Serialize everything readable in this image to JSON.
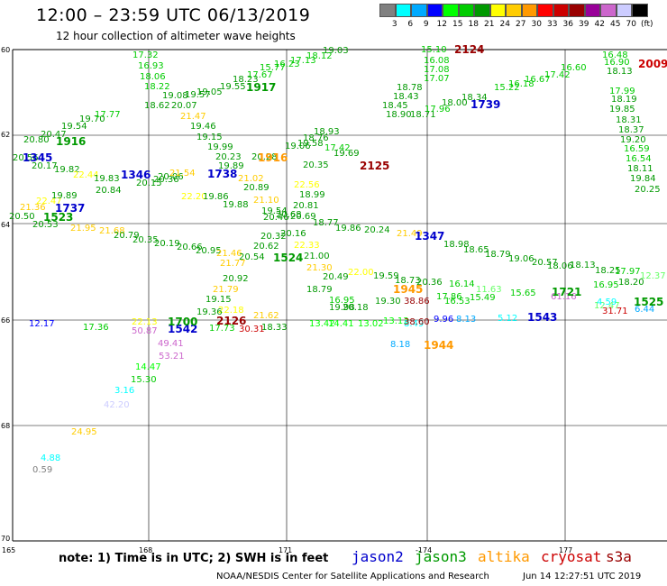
{
  "header": {
    "title": "12:00 – 23:59 UTC 06/13/2019",
    "subtitle": "12 hour collection of altimeter wave heights"
  },
  "scale": {
    "colors": [
      "#808080",
      "#00ffff",
      "#00aaff",
      "#0000ff",
      "#00ff00",
      "#00cc00",
      "#009900",
      "#ffff00",
      "#ffcc00",
      "#ff9900",
      "#ff0000",
      "#cc0000",
      "#990000",
      "#990099",
      "#cc66cc",
      "#ccccff",
      "#000000"
    ],
    "labels": [
      "3",
      "6",
      "9",
      "12",
      "15",
      "18",
      "21",
      "24",
      "27",
      "30",
      "33",
      "36",
      "39",
      "42",
      "45",
      "70",
      "(ft)"
    ]
  },
  "axes": {
    "lat_labels": [
      "60",
      "62",
      "64",
      "66",
      "68",
      "70"
    ],
    "lon_labels": [
      "165",
      "168",
      "171",
      "-174",
      "177"
    ]
  },
  "footer": {
    "note": "note: 1) Time is in UTC; 2) SWH is in feet",
    "satellites": [
      {
        "name": "jason2",
        "color": "#0000cc"
      },
      {
        "name": "jason3",
        "color": "#009900"
      },
      {
        "name": "altika",
        "color": "#ff9900"
      },
      {
        "name": "cryosat",
        "color": "#cc0000"
      },
      {
        "name": "s3a",
        "color": "#990000"
      }
    ],
    "credit": "NOAA/NESDIS Center for Satellite Applications and Research",
    "timestamp": "Jun 14 12:27:51 UTC 2019"
  },
  "passes": [
    {
      "label": "1916",
      "color": "#009900"
    },
    {
      "label": "1345",
      "color": "#0000cc"
    },
    {
      "label": "1737",
      "color": "#0000cc"
    },
    {
      "label": "1523",
      "color": "#009900"
    },
    {
      "label": "1346",
      "color": "#0000cc"
    },
    {
      "label": "1738",
      "color": "#0000cc"
    },
    {
      "label": "1917",
      "color": "#009900"
    },
    {
      "label": "1916",
      "color": "#ff9900"
    },
    {
      "label": "2124",
      "color": "#990000"
    },
    {
      "label": "2125",
      "color": "#990000"
    },
    {
      "label": "1739",
      "color": "#0000cc"
    },
    {
      "label": "2009",
      "color": "#cc0000"
    },
    {
      "label": "1524",
      "color": "#009900"
    },
    {
      "label": "1347",
      "color": "#0000cc"
    },
    {
      "label": "1945",
      "color": "#ff9900"
    },
    {
      "label": "2126",
      "color": "#990000"
    },
    {
      "label": "1542",
      "color": "#0000cc"
    },
    {
      "label": "1700",
      "color": "#009900"
    },
    {
      "label": "1944",
      "color": "#ff9900"
    },
    {
      "label": "1543",
      "color": "#0000cc"
    },
    {
      "label": "1721",
      "color": "#009900"
    },
    {
      "label": "1525",
      "color": "#009900"
    }
  ],
  "observations": [
    {
      "v": "17.32",
      "c": "#00cc00"
    },
    {
      "v": "16.93",
      "c": "#00cc00"
    },
    {
      "v": "18.06",
      "c": "#00cc00"
    },
    {
      "v": "18.22",
      "c": "#00cc00"
    },
    {
      "v": "19.08",
      "c": "#009900"
    },
    {
      "v": "18.62",
      "c": "#009900"
    },
    {
      "v": "20.07",
      "c": "#009900"
    },
    {
      "v": "19.57",
      "c": "#009900"
    },
    {
      "v": "19.05",
      "c": "#009900"
    },
    {
      "v": "19.55",
      "c": "#009900"
    },
    {
      "v": "18.23",
      "c": "#009900"
    },
    {
      "v": "17.67",
      "c": "#00cc00"
    },
    {
      "v": "15.77",
      "c": "#00cc00"
    },
    {
      "v": "16.23",
      "c": "#00cc00"
    },
    {
      "v": "17.13",
      "c": "#00cc00"
    },
    {
      "v": "18.12",
      "c": "#00cc00"
    },
    {
      "v": "19.03",
      "c": "#009900"
    },
    {
      "v": "21.47",
      "c": "#ffcc00"
    },
    {
      "v": "19.46",
      "c": "#009900"
    },
    {
      "v": "19.15",
      "c": "#009900"
    },
    {
      "v": "19.99",
      "c": "#009900"
    },
    {
      "v": "20.23",
      "c": "#009900"
    },
    {
      "v": "20.28",
      "c": "#009900"
    },
    {
      "v": "19.89",
      "c": "#009900"
    },
    {
      "v": "20.80",
      "c": "#009900"
    },
    {
      "v": "20.47",
      "c": "#009900"
    },
    {
      "v": "19.54",
      "c": "#009900"
    },
    {
      "v": "19.70",
      "c": "#009900"
    },
    {
      "v": "17.77",
      "c": "#00cc00"
    },
    {
      "v": "20.56",
      "c": "#009900"
    },
    {
      "v": "20.17",
      "c": "#009900"
    },
    {
      "v": "19.82",
      "c": "#009900"
    },
    {
      "v": "22.44",
      "c": "#ffff00"
    },
    {
      "v": "19.83",
      "c": "#009900"
    },
    {
      "v": "20.84",
      "c": "#009900"
    },
    {
      "v": "20.15",
      "c": "#009900"
    },
    {
      "v": "20.36",
      "c": "#009900"
    },
    {
      "v": "20.06",
      "c": "#009900"
    },
    {
      "v": "21.54",
      "c": "#ffcc00"
    },
    {
      "v": "22.20",
      "c": "#ffff00"
    },
    {
      "v": "19.86",
      "c": "#009900"
    },
    {
      "v": "20.89",
      "c": "#009900"
    },
    {
      "v": "21.02",
      "c": "#ffcc00"
    },
    {
      "v": "21.36",
      "c": "#ffcc00"
    },
    {
      "v": "22.47",
      "c": "#ffff00"
    },
    {
      "v": "19.89",
      "c": "#009900"
    },
    {
      "v": "20.50",
      "c": "#009900"
    },
    {
      "v": "20.53",
      "c": "#009900"
    },
    {
      "v": "21.95",
      "c": "#ffcc00"
    },
    {
      "v": "21.68",
      "c": "#ffcc00"
    },
    {
      "v": "20.79",
      "c": "#009900"
    },
    {
      "v": "20.35",
      "c": "#009900"
    },
    {
      "v": "20.19",
      "c": "#009900"
    },
    {
      "v": "20.66",
      "c": "#009900"
    },
    {
      "v": "20.95",
      "c": "#009900"
    },
    {
      "v": "21.46",
      "c": "#ffcc00"
    },
    {
      "v": "21.77",
      "c": "#ffcc00"
    },
    {
      "v": "20.54",
      "c": "#009900"
    },
    {
      "v": "20.92",
      "c": "#009900"
    },
    {
      "v": "21.79",
      "c": "#ffcc00"
    },
    {
      "v": "19.15",
      "c": "#009900"
    },
    {
      "v": "22.18",
      "c": "#ffff00"
    },
    {
      "v": "20.62",
      "c": "#009900"
    },
    {
      "v": "20.32",
      "c": "#009900"
    },
    {
      "v": "20.16",
      "c": "#009900"
    },
    {
      "v": "21.00",
      "c": "#009900"
    },
    {
      "v": "22.33",
      "c": "#ffff00"
    },
    {
      "v": "21.10",
      "c": "#ffcc00"
    },
    {
      "v": "19.88",
      "c": "#009900"
    },
    {
      "v": "19.54",
      "c": "#009900"
    },
    {
      "v": "20.46",
      "c": "#009900"
    },
    {
      "v": "20.68",
      "c": "#009900"
    },
    {
      "v": "20.69",
      "c": "#009900"
    },
    {
      "v": "20.81",
      "c": "#009900"
    },
    {
      "v": "18.99",
      "c": "#009900"
    },
    {
      "v": "22.56",
      "c": "#ffff00"
    },
    {
      "v": "20.35",
      "c": "#009900"
    },
    {
      "v": "19.69",
      "c": "#009900"
    },
    {
      "v": "17.42",
      "c": "#00cc00"
    },
    {
      "v": "18.93",
      "c": "#009900"
    },
    {
      "v": "18.76",
      "c": "#009900"
    },
    {
      "v": "19.58",
      "c": "#009900"
    },
    {
      "v": "19.06",
      "c": "#009900"
    },
    {
      "v": "18.77",
      "c": "#009900"
    },
    {
      "v": "19.86",
      "c": "#009900"
    },
    {
      "v": "20.24",
      "c": "#009900"
    },
    {
      "v": "21.49",
      "c": "#ffcc00"
    },
    {
      "v": "21.30",
      "c": "#ffcc00"
    },
    {
      "v": "20.49",
      "c": "#009900"
    },
    {
      "v": "22.00",
      "c": "#ffff00"
    },
    {
      "v": "19.59",
      "c": "#009900"
    },
    {
      "v": "18.73",
      "c": "#009900"
    },
    {
      "v": "20.36",
      "c": "#009900"
    },
    {
      "v": "16.14",
      "c": "#00cc00"
    },
    {
      "v": "17.86",
      "c": "#00cc00"
    },
    {
      "v": "18.79",
      "c": "#009900"
    },
    {
      "v": "16.95",
      "c": "#00cc00"
    },
    {
      "v": "20.18",
      "c": "#009900"
    },
    {
      "v": "19.30",
      "c": "#009900"
    },
    {
      "v": "38.86",
      "c": "#990000"
    },
    {
      "v": "16.53",
      "c": "#00cc00"
    },
    {
      "v": "19.98",
      "c": "#009900"
    },
    {
      "v": "13.42",
      "c": "#00ff00"
    },
    {
      "v": "14.41",
      "c": "#00ff00"
    },
    {
      "v": "13.02",
      "c": "#00ff00"
    },
    {
      "v": "13.13",
      "c": "#00ff00"
    },
    {
      "v": "8.49",
      "c": "#00ffff"
    },
    {
      "v": "38.60",
      "c": "#990000"
    },
    {
      "v": "9.96",
      "c": "#0000ff"
    },
    {
      "v": "8.13",
      "c": "#00aaff"
    },
    {
      "v": "8.18",
      "c": "#00aaff"
    },
    {
      "v": "15.10",
      "c": "#00cc00"
    },
    {
      "v": "16.08",
      "c": "#00cc00"
    },
    {
      "v": "17.08",
      "c": "#00cc00"
    },
    {
      "v": "17.07",
      "c": "#00cc00"
    },
    {
      "v": "18.78",
      "c": "#009900"
    },
    {
      "v": "18.43",
      "c": "#009900"
    },
    {
      "v": "18.45",
      "c": "#009900"
    },
    {
      "v": "18.90",
      "c": "#009900"
    },
    {
      "v": "18.71",
      "c": "#009900"
    },
    {
      "v": "17.96",
      "c": "#00cc00"
    },
    {
      "v": "18.00",
      "c": "#009900"
    },
    {
      "v": "18.34",
      "c": "#009900"
    },
    {
      "v": "15.22",
      "c": "#00cc00"
    },
    {
      "v": "16.18",
      "c": "#00cc00"
    },
    {
      "v": "16.67",
      "c": "#00cc00"
    },
    {
      "v": "17.42",
      "c": "#00cc00"
    },
    {
      "v": "16.60",
      "c": "#00cc00"
    },
    {
      "v": "16.48",
      "c": "#00cc00"
    },
    {
      "v": "16.90",
      "c": "#00cc00"
    },
    {
      "v": "18.13",
      "c": "#009900"
    },
    {
      "v": "17.99",
      "c": "#00cc00"
    },
    {
      "v": "18.19",
      "c": "#009900"
    },
    {
      "v": "19.85",
      "c": "#009900"
    },
    {
      "v": "18.31",
      "c": "#009900"
    },
    {
      "v": "18.37",
      "c": "#009900"
    },
    {
      "v": "19.20",
      "c": "#009900"
    },
    {
      "v": "16.59",
      "c": "#00cc00"
    },
    {
      "v": "16.54",
      "c": "#00cc00"
    },
    {
      "v": "18.11",
      "c": "#009900"
    },
    {
      "v": "19.84",
      "c": "#009900"
    },
    {
      "v": "20.25",
      "c": "#009900"
    },
    {
      "v": "18.98",
      "c": "#009900"
    },
    {
      "v": "18.65",
      "c": "#009900"
    },
    {
      "v": "18.79",
      "c": "#009900"
    },
    {
      "v": "19.06",
      "c": "#009900"
    },
    {
      "v": "20.57",
      "c": "#009900"
    },
    {
      "v": "18.06",
      "c": "#009900"
    },
    {
      "v": "18.13",
      "c": "#009900"
    },
    {
      "v": "18.25",
      "c": "#009900"
    },
    {
      "v": "17.97",
      "c": "#00cc00"
    },
    {
      "v": "18.20",
      "c": "#009900"
    },
    {
      "v": "12.37",
      "c": "#66ff66"
    },
    {
      "v": "11.63",
      "c": "#66ff66"
    },
    {
      "v": "15.49",
      "c": "#00cc00"
    },
    {
      "v": "15.65",
      "c": "#00cc00"
    },
    {
      "v": "16.95",
      "c": "#00cc00"
    },
    {
      "v": "12.47",
      "c": "#66ff66"
    },
    {
      "v": "4.59",
      "c": "#00ffff"
    },
    {
      "v": "5.12",
      "c": "#00ffff"
    },
    {
      "v": "61.16",
      "c": "#cc66cc"
    },
    {
      "v": "31.71",
      "c": "#cc0000"
    },
    {
      "v": "6.44",
      "c": "#00aaff"
    },
    {
      "v": "12.17",
      "c": "#0000ff"
    },
    {
      "v": "17.36",
      "c": "#00cc00"
    },
    {
      "v": "22.13",
      "c": "#ffff00"
    },
    {
      "v": "50.87",
      "c": "#cc66cc"
    },
    {
      "v": "17.73",
      "c": "#00cc00"
    },
    {
      "v": "30.31",
      "c": "#cc0000"
    },
    {
      "v": "18.33",
      "c": "#009900"
    },
    {
      "v": "21.62",
      "c": "#ffcc00"
    },
    {
      "v": "19.36",
      "c": "#009900"
    },
    {
      "v": "49.41",
      "c": "#cc66cc"
    },
    {
      "v": "53.21",
      "c": "#cc66cc"
    },
    {
      "v": "14.47",
      "c": "#00ff00"
    },
    {
      "v": "15.30",
      "c": "#00cc00"
    },
    {
      "v": "3.16",
      "c": "#00ffff"
    },
    {
      "v": "42.20",
      "c": "#ccccff"
    },
    {
      "v": "24.95",
      "c": "#ffcc00"
    },
    {
      "v": "4.88",
      "c": "#00ffff"
    },
    {
      "v": "0.59",
      "c": "#808080"
    }
  ]
}
